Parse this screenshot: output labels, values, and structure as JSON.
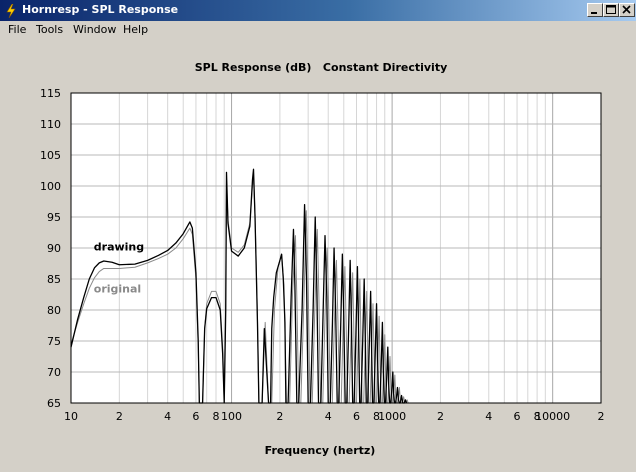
{
  "window": {
    "title": "Hornresp - SPL Response",
    "accent_color": "#0a246a",
    "buttons": [
      "minimize-icon",
      "maximize-icon",
      "close-icon"
    ]
  },
  "menu": {
    "items": [
      "File",
      "Tools",
      "Window",
      "Help"
    ]
  },
  "chart_data": {
    "type": "line",
    "title": "SPL Response (dB)   Constant Directivity",
    "xlabel": "Frequency (hertz)",
    "ylabel": "",
    "x_scale": "log",
    "xlim": [
      10,
      20000
    ],
    "ylim": [
      65,
      115
    ],
    "y_ticks": [
      65,
      70,
      75,
      80,
      85,
      90,
      95,
      100,
      105,
      110,
      115
    ],
    "x_ticks": [
      {
        "value": 10,
        "label": "10"
      },
      {
        "value": 20,
        "label": "2"
      },
      {
        "value": 40,
        "label": "4"
      },
      {
        "value": 60,
        "label": "6"
      },
      {
        "value": 80,
        "label": "8"
      },
      {
        "value": 100,
        "label": "100"
      },
      {
        "value": 200,
        "label": "2"
      },
      {
        "value": 400,
        "label": "4"
      },
      {
        "value": 600,
        "label": "6"
      },
      {
        "value": 800,
        "label": "8"
      },
      {
        "value": 1000,
        "label": "1000"
      },
      {
        "value": 2000,
        "label": "2"
      },
      {
        "value": 4000,
        "label": "4"
      },
      {
        "value": 6000,
        "label": "6"
      },
      {
        "value": 8000,
        "label": "8"
      },
      {
        "value": 10000,
        "label": "10000"
      },
      {
        "value": 20000,
        "label": "2"
      }
    ],
    "grid": true,
    "series": [
      {
        "name": "drawing",
        "color": "#000000",
        "points": [
          [
            10,
            74
          ],
          [
            11,
            78.5
          ],
          [
            12,
            82
          ],
          [
            13,
            85
          ],
          [
            14,
            86.8
          ],
          [
            15,
            87.6
          ],
          [
            16,
            87.9
          ],
          [
            18,
            87.7
          ],
          [
            20,
            87.3
          ],
          [
            25,
            87.4
          ],
          [
            30,
            88
          ],
          [
            35,
            88.8
          ],
          [
            40,
            89.6
          ],
          [
            45,
            90.8
          ],
          [
            50,
            92.3
          ],
          [
            55,
            94.2
          ],
          [
            57,
            93.2
          ],
          [
            60,
            86
          ],
          [
            62,
            75
          ],
          [
            63,
            65
          ],
          [
            66,
            65
          ],
          [
            68,
            77
          ],
          [
            70,
            80.2
          ],
          [
            75,
            82
          ],
          [
            80,
            82
          ],
          [
            85,
            80
          ],
          [
            88,
            73
          ],
          [
            90,
            65
          ],
          [
            92,
            80
          ],
          [
            93,
            102.2
          ],
          [
            95,
            94
          ],
          [
            100,
            89.5
          ],
          [
            110,
            88.7
          ],
          [
            120,
            90
          ],
          [
            130,
            93.5
          ],
          [
            135,
            101
          ],
          [
            137,
            102.7
          ],
          [
            140,
            95
          ],
          [
            145,
            78
          ],
          [
            148,
            65
          ],
          [
            155,
            65
          ],
          [
            160,
            77
          ],
          [
            170,
            65
          ],
          [
            175,
            65
          ],
          [
            178,
            77
          ],
          [
            183,
            82
          ],
          [
            190,
            86
          ],
          [
            200,
            88
          ],
          [
            205,
            89
          ],
          [
            210,
            85
          ],
          [
            215,
            78
          ],
          [
            218,
            65
          ],
          [
            225,
            65
          ],
          [
            235,
            82
          ],
          [
            243,
            93
          ],
          [
            248,
            84
          ],
          [
            255,
            65
          ],
          [
            262,
            65
          ],
          [
            275,
            80
          ],
          [
            285,
            97
          ],
          [
            293,
            85
          ],
          [
            300,
            65
          ],
          [
            310,
            65
          ],
          [
            322,
            80
          ],
          [
            332,
            95
          ],
          [
            340,
            83
          ],
          [
            348,
            65
          ],
          [
            360,
            65
          ],
          [
            372,
            80
          ],
          [
            382,
            92
          ],
          [
            392,
            82
          ],
          [
            400,
            65
          ],
          [
            412,
            65
          ],
          [
            425,
            78
          ],
          [
            435,
            90
          ],
          [
            445,
            80
          ],
          [
            455,
            65
          ],
          [
            465,
            65
          ],
          [
            478,
            77
          ],
          [
            490,
            89
          ],
          [
            500,
            79
          ],
          [
            510,
            65
          ],
          [
            522,
            65
          ],
          [
            535,
            76
          ],
          [
            548,
            88
          ],
          [
            558,
            78
          ],
          [
            568,
            65
          ],
          [
            580,
            65
          ],
          [
            595,
            76
          ],
          [
            608,
            87
          ],
          [
            618,
            77
          ],
          [
            628,
            65
          ],
          [
            640,
            65
          ],
          [
            656,
            75
          ],
          [
            670,
            85
          ],
          [
            680,
            76
          ],
          [
            690,
            65
          ],
          [
            705,
            65
          ],
          [
            720,
            74
          ],
          [
            735,
            83
          ],
          [
            745,
            74
          ],
          [
            755,
            65
          ],
          [
            770,
            65
          ],
          [
            785,
            73
          ],
          [
            800,
            81
          ],
          [
            812,
            72
          ],
          [
            825,
            65
          ],
          [
            840,
            65
          ],
          [
            855,
            71
          ],
          [
            870,
            78
          ],
          [
            882,
            70
          ],
          [
            895,
            65
          ],
          [
            910,
            65
          ],
          [
            925,
            69
          ],
          [
            940,
            74
          ],
          [
            952,
            68
          ],
          [
            965,
            65
          ],
          [
            980,
            65
          ],
          [
            995,
            67
          ],
          [
            1010,
            70
          ],
          [
            1022,
            66.5
          ],
          [
            1035,
            65
          ],
          [
            1050,
            65
          ],
          [
            1065,
            66
          ],
          [
            1080,
            67.5
          ],
          [
            1095,
            65.5
          ],
          [
            1110,
            65
          ],
          [
            1125,
            65
          ],
          [
            1145,
            66.2
          ],
          [
            1165,
            65
          ],
          [
            1190,
            65
          ],
          [
            1210,
            65.5
          ],
          [
            1230,
            65
          ]
        ]
      },
      {
        "name": "original",
        "color": "#8a8a8a",
        "points": [
          [
            10,
            74.5
          ],
          [
            11,
            78
          ],
          [
            12,
            81
          ],
          [
            13,
            83.5
          ],
          [
            14,
            85.2
          ],
          [
            15,
            86.2
          ],
          [
            16,
            86.7
          ],
          [
            18,
            86.7
          ],
          [
            20,
            86.7
          ],
          [
            25,
            86.9
          ],
          [
            30,
            87.6
          ],
          [
            35,
            88.3
          ],
          [
            40,
            89
          ],
          [
            45,
            90
          ],
          [
            50,
            91.5
          ],
          [
            55,
            93.2
          ],
          [
            57,
            92.2
          ],
          [
            60,
            85
          ],
          [
            62,
            74
          ],
          [
            63,
            65
          ],
          [
            66,
            65
          ],
          [
            68,
            77
          ],
          [
            70,
            81
          ],
          [
            75,
            83
          ],
          [
            80,
            83
          ],
          [
            85,
            81
          ],
          [
            88,
            74
          ],
          [
            90,
            65
          ],
          [
            92,
            82
          ],
          [
            93,
            101
          ],
          [
            95,
            94.5
          ],
          [
            100,
            90
          ],
          [
            110,
            89.3
          ],
          [
            120,
            90.5
          ],
          [
            130,
            94
          ],
          [
            135,
            100
          ],
          [
            137,
            101.5
          ],
          [
            140,
            95.5
          ],
          [
            145,
            79
          ],
          [
            148,
            65
          ],
          [
            155,
            65
          ],
          [
            162,
            78
          ],
          [
            170,
            65
          ],
          [
            178,
            65
          ],
          [
            185,
            80
          ],
          [
            195,
            87
          ],
          [
            205,
            89
          ],
          [
            212,
            84
          ],
          [
            220,
            65
          ],
          [
            230,
            65
          ],
          [
            240,
            83
          ],
          [
            250,
            92
          ],
          [
            255,
            82
          ],
          [
            262,
            65
          ],
          [
            270,
            65
          ],
          [
            282,
            81
          ],
          [
            292,
            96
          ],
          [
            300,
            84
          ],
          [
            308,
            65
          ],
          [
            318,
            65
          ],
          [
            330,
            80
          ],
          [
            342,
            93
          ],
          [
            350,
            82
          ],
          [
            358,
            65
          ],
          [
            370,
            65
          ],
          [
            382,
            79
          ],
          [
            394,
            90
          ],
          [
            403,
            80
          ],
          [
            412,
            65
          ],
          [
            424,
            65
          ],
          [
            437,
            78
          ],
          [
            450,
            88
          ],
          [
            460,
            78
          ],
          [
            470,
            65
          ],
          [
            482,
            65
          ],
          [
            495,
            77
          ],
          [
            508,
            87
          ],
          [
            518,
            77
          ],
          [
            528,
            65
          ],
          [
            540,
            65
          ],
          [
            555,
            76
          ],
          [
            568,
            86
          ],
          [
            578,
            76
          ],
          [
            588,
            65
          ],
          [
            600,
            65
          ],
          [
            615,
            75
          ],
          [
            630,
            85
          ],
          [
            640,
            75
          ],
          [
            650,
            65
          ],
          [
            665,
            65
          ],
          [
            680,
            74
          ],
          [
            695,
            83
          ],
          [
            705,
            74
          ],
          [
            715,
            65
          ],
          [
            730,
            65
          ],
          [
            745,
            73
          ],
          [
            760,
            81
          ],
          [
            772,
            73
          ],
          [
            785,
            65
          ],
          [
            800,
            65
          ],
          [
            815,
            72
          ],
          [
            830,
            79
          ],
          [
            842,
            71
          ],
          [
            855,
            65
          ],
          [
            870,
            65
          ],
          [
            885,
            70
          ],
          [
            900,
            76
          ],
          [
            912,
            69
          ],
          [
            925,
            65
          ],
          [
            940,
            65
          ],
          [
            955,
            68.5
          ],
          [
            970,
            72.5
          ],
          [
            982,
            67.5
          ],
          [
            995,
            65
          ],
          [
            1010,
            65
          ],
          [
            1025,
            67
          ],
          [
            1040,
            69.5
          ],
          [
            1052,
            66
          ],
          [
            1065,
            65
          ],
          [
            1080,
            65
          ],
          [
            1095,
            66
          ],
          [
            1110,
            67.5
          ],
          [
            1125,
            65.5
          ],
          [
            1140,
            65
          ],
          [
            1160,
            65
          ],
          [
            1180,
            66
          ],
          [
            1200,
            65
          ],
          [
            1220,
            65
          ],
          [
            1240,
            65.5
          ],
          [
            1260,
            65
          ]
        ]
      }
    ]
  }
}
